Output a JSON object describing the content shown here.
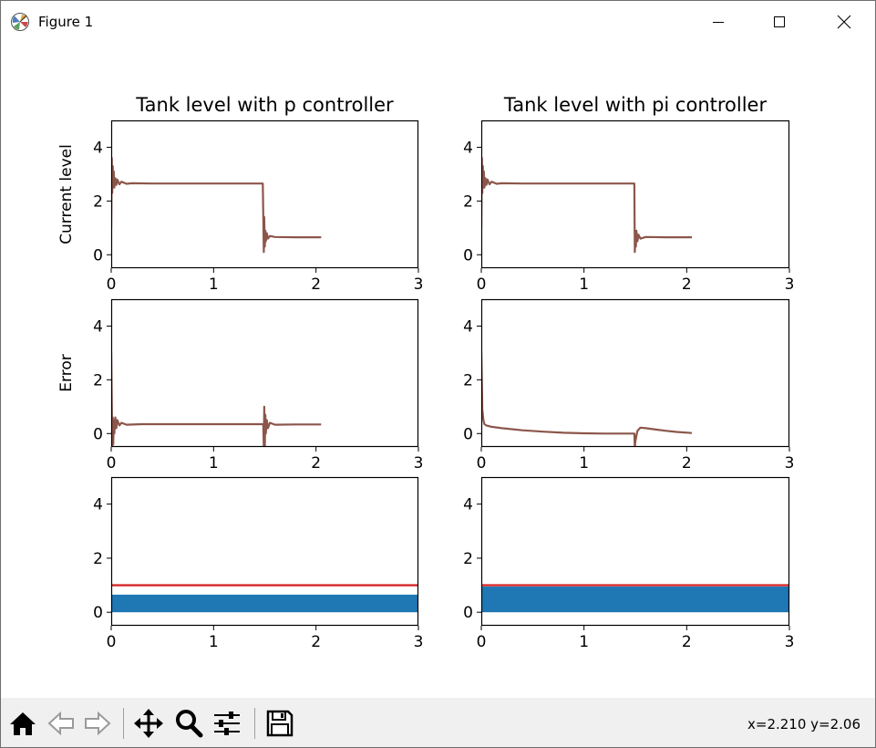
{
  "window": {
    "title": "Figure 1",
    "controls": [
      "minimize-icon",
      "maximize-icon",
      "close-icon"
    ]
  },
  "toolbar": {
    "buttons": [
      "home-icon",
      "back-icon",
      "forward-icon",
      "pan-icon",
      "zoom-icon",
      "configure-subplots-icon",
      "save-icon"
    ],
    "coords": "x=2.210 y=2.06"
  },
  "colors": {
    "trace": "#8c564b",
    "setpoint": "#d62728",
    "bar": "#1f77b4",
    "axes": "#000000"
  },
  "chart_data": [
    {
      "id": "p-level",
      "type": "line",
      "title": "Tank level with p controller",
      "ylabel": "Current level",
      "xlabel": "",
      "xlim": [
        0,
        3
      ],
      "ylim": [
        -0.5,
        5
      ],
      "xticks": [
        "0",
        "1",
        "2",
        "3"
      ],
      "yticks": [
        "0",
        "2",
        "4"
      ],
      "series": [
        {
          "x": [
            0,
            0.005,
            0.01,
            0.015,
            0.02,
            0.025,
            0.03,
            0.04,
            0.05,
            0.06,
            0.08,
            0.1,
            0.15,
            0.2,
            0.4,
            1.0,
            1.48,
            1.485,
            1.49,
            1.495,
            1.5,
            1.505,
            1.51,
            1.52,
            1.53,
            1.55,
            1.6,
            1.8,
            2.05
          ],
          "y": [
            1.0,
            3.6,
            2.3,
            3.3,
            2.5,
            3.1,
            2.5,
            2.85,
            2.6,
            2.8,
            2.62,
            2.72,
            2.64,
            2.66,
            2.65,
            2.65,
            2.65,
            1.5,
            0.1,
            1.4,
            0.3,
            0.9,
            0.5,
            0.8,
            0.6,
            0.7,
            0.66,
            0.65,
            0.65
          ]
        }
      ]
    },
    {
      "id": "pi-level",
      "type": "line",
      "title": "Tank level with pi controller",
      "ylabel": "",
      "xlabel": "",
      "xlim": [
        0,
        3
      ],
      "ylim": [
        -0.5,
        5
      ],
      "xticks": [
        "0",
        "1",
        "2",
        "3"
      ],
      "yticks": [
        "0",
        "2",
        "4"
      ],
      "series": [
        {
          "x": [
            0,
            0.005,
            0.01,
            0.015,
            0.02,
            0.025,
            0.03,
            0.04,
            0.05,
            0.06,
            0.08,
            0.1,
            0.15,
            0.2,
            0.4,
            1.0,
            1.49,
            1.495,
            1.5,
            1.505,
            1.51,
            1.52,
            1.53,
            1.55,
            1.6,
            1.8,
            2.05
          ],
          "y": [
            1.0,
            3.6,
            2.3,
            3.3,
            2.5,
            3.1,
            2.5,
            2.85,
            2.6,
            2.8,
            2.62,
            2.72,
            2.64,
            2.66,
            2.65,
            2.65,
            2.65,
            0.1,
            0.6,
            0.3,
            0.9,
            0.5,
            0.75,
            0.6,
            0.66,
            0.65,
            0.65
          ]
        }
      ]
    },
    {
      "id": "p-error",
      "type": "line",
      "title": "",
      "ylabel": "Error",
      "xlabel": "",
      "xlim": [
        0,
        3
      ],
      "ylim": [
        -0.5,
        5
      ],
      "xticks": [
        "0",
        "1",
        "2",
        "3"
      ],
      "yticks": [
        "0",
        "2",
        "4"
      ],
      "series": [
        {
          "x": [
            0,
            0.005,
            0.01,
            0.015,
            0.02,
            0.025,
            0.03,
            0.04,
            0.05,
            0.06,
            0.08,
            0.1,
            0.15,
            0.3,
            1.0,
            1.48,
            1.485,
            1.49,
            1.495,
            1.5,
            1.505,
            1.51,
            1.52,
            1.53,
            1.55,
            1.6,
            1.8,
            2.05
          ],
          "y": [
            3.0,
            1.2,
            -0.5,
            0.6,
            -0.4,
            0.5,
            0.0,
            0.6,
            0.2,
            0.5,
            0.3,
            0.4,
            0.33,
            0.35,
            0.35,
            0.35,
            0.35,
            -0.5,
            1.0,
            -0.5,
            0.7,
            0.0,
            0.5,
            0.2,
            0.4,
            0.33,
            0.34,
            0.34
          ]
        }
      ]
    },
    {
      "id": "pi-error",
      "type": "line",
      "title": "",
      "ylabel": "",
      "xlabel": "",
      "xlim": [
        0,
        3
      ],
      "ylim": [
        -0.5,
        5
      ],
      "xticks": [
        "0",
        "1",
        "2",
        "3"
      ],
      "yticks": [
        "0",
        "2",
        "4"
      ],
      "series": [
        {
          "x": [
            0,
            0.005,
            0.01,
            0.02,
            0.03,
            0.05,
            0.1,
            0.2,
            0.4,
            0.6,
            0.8,
            1.0,
            1.2,
            1.48,
            1.49,
            1.495,
            1.5,
            1.51,
            1.52,
            1.55,
            1.6,
            1.7,
            1.8,
            1.9,
            2.05
          ],
          "y": [
            3.0,
            2.0,
            0.9,
            0.5,
            0.35,
            0.3,
            0.25,
            0.2,
            0.12,
            0.07,
            0.03,
            0.01,
            0.0,
            0.0,
            0.0,
            -0.5,
            -0.3,
            -0.1,
            0.1,
            0.22,
            0.2,
            0.15,
            0.1,
            0.06,
            0.02
          ]
        }
      ]
    },
    {
      "id": "p-tank",
      "type": "bar",
      "title": "",
      "ylabel": "",
      "xlabel": "",
      "xlim": [
        0,
        3
      ],
      "ylim": [
        -0.5,
        5
      ],
      "xticks": [
        "0",
        "1",
        "2",
        "3"
      ],
      "yticks": [
        "0",
        "2",
        "4"
      ],
      "level": 0.65,
      "setpoint": 1.0
    },
    {
      "id": "pi-tank",
      "type": "bar",
      "title": "",
      "ylabel": "",
      "xlabel": "",
      "xlim": [
        0,
        3
      ],
      "ylim": [
        -0.5,
        5
      ],
      "xticks": [
        "0",
        "1",
        "2",
        "3"
      ],
      "yticks": [
        "0",
        "2",
        "4"
      ],
      "level": 0.95,
      "setpoint": 1.0
    }
  ]
}
